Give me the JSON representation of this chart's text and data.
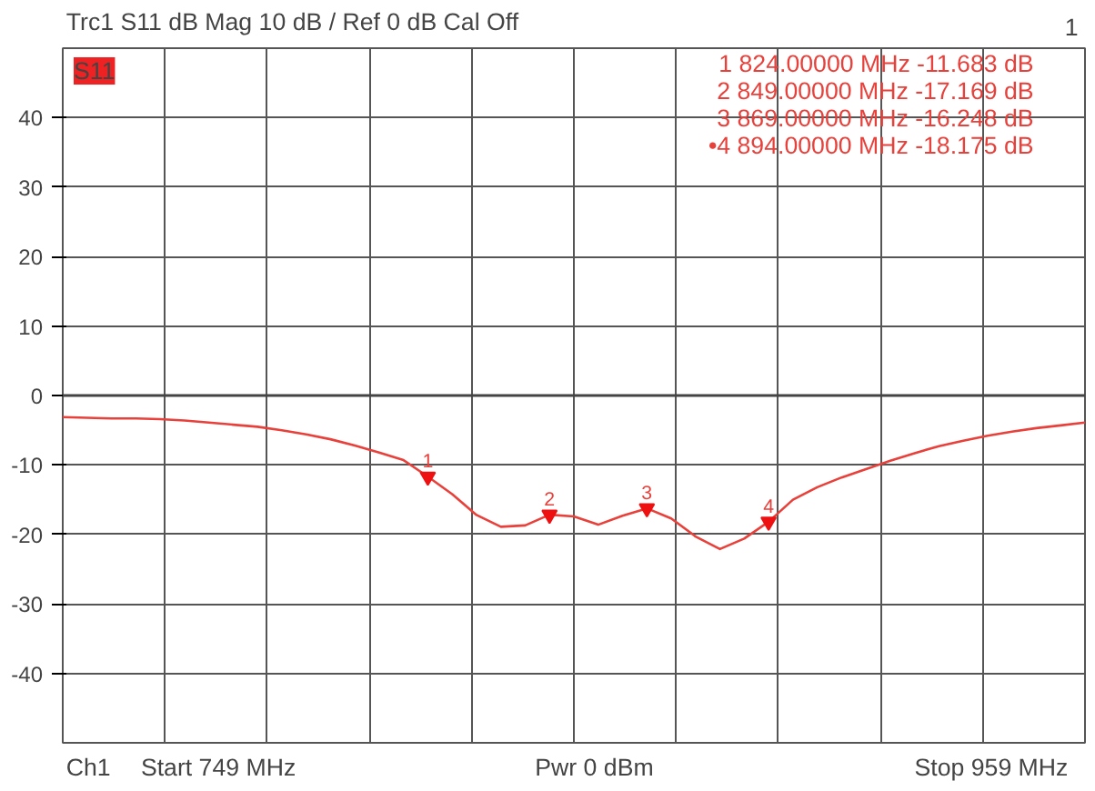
{
  "chart_data": {
    "type": "line",
    "title": "Trc1   S11   dB Mag   10 dB /   Ref 0 dB      Cal Off",
    "categories": [
      null,
      null,
      null,
      null,
      null,
      null,
      null,
      null,
      null,
      null,
      null,
      null,
      null,
      null,
      null,
      null,
      null,
      null,
      null,
      null,
      null,
      null,
      null,
      null,
      null,
      null,
      null,
      null,
      null,
      null,
      null,
      null,
      null,
      null,
      null,
      null,
      null,
      null,
      null,
      null,
      null,
      null,
      null
    ],
    "series": [
      {
        "color": "#e8403a",
        "values": [
          -3.1,
          -3.2,
          -3.3,
          -3.3,
          -3.4,
          -3.6,
          -3.9,
          -4.2,
          -4.5,
          -5.0,
          -5.6,
          -6.3,
          -7.2,
          -8.2,
          -9.3,
          -11.683,
          -14.2,
          -17.2,
          -18.9,
          -18.7,
          -17.169,
          -17.4,
          -18.6,
          -17.3,
          -16.248,
          -17.7,
          -20.3,
          -22.1,
          -20.6,
          -18.175,
          -15.0,
          -13.2,
          -11.8,
          -10.6,
          -9.4,
          -8.3,
          -7.3,
          -6.5,
          -5.8,
          -5.2,
          -4.7,
          -4.3,
          -3.9
        ]
      }
    ],
    "ylim": [
      -50,
      50
    ],
    "yticks": [
      -40,
      -30,
      -20,
      -10,
      0,
      10,
      20,
      30,
      40
    ],
    "grid": true,
    "ref_lines": [
      {
        "axis": "y",
        "value": 0,
        "color": "#444444"
      }
    ],
    "annotations": [
      "1",
      "S11",
      "1   824.00000  MHz   -11.683  dB",
      "2   849.00000  MHz   -17.169  dB",
      "3   869.00000  MHz   -16.248  dB",
      "•4   894.00000  MHz   -18.175  dB",
      "Ch1",
      "Start  749 MHz",
      "Pwr  0 dBm",
      "Stop  959 MHz",
      {
        "text": "1",
        "y": -11.683
      },
      {
        "text": "2",
        "y": -17.169
      },
      {
        "text": "3",
        "y": -16.248
      },
      {
        "text": "4",
        "y": -18.175
      }
    ]
  }
}
